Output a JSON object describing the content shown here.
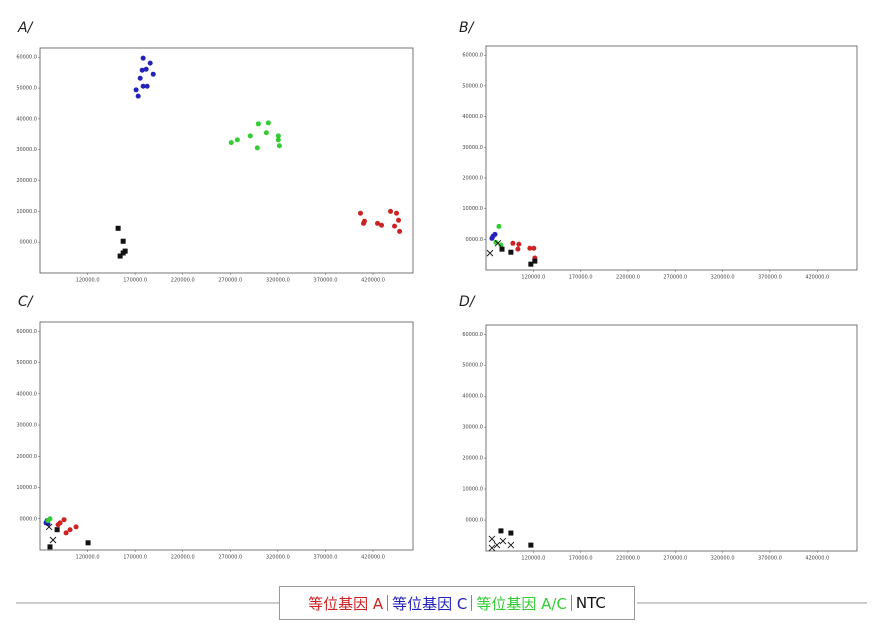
{
  "chart_data": [
    {
      "type": "scatter",
      "title": "A/",
      "xlim": [
        70000,
        462000
      ],
      "ylim": [
        -10000,
        63000
      ],
      "xticks": [
        {
          "value": 120000,
          "label": "120000.0"
        },
        {
          "value": 170000,
          "label": "170000.0"
        },
        {
          "value": 220000,
          "label": "220000.0"
        },
        {
          "value": 270000,
          "label": "270000.0"
        },
        {
          "value": 320000,
          "label": "320000.0"
        },
        {
          "value": 370000,
          "label": "370000.0"
        },
        {
          "value": 420000,
          "label": "420000.0"
        }
      ],
      "yticks": [
        {
          "value": 0,
          "label": "0000.0"
        },
        {
          "value": 10000,
          "label": "10000.0"
        },
        {
          "value": 20000,
          "label": "20000.0"
        },
        {
          "value": 30000,
          "label": "30000.0"
        },
        {
          "value": 40000,
          "label": "40000.0"
        },
        {
          "value": 50000,
          "label": "50000.0"
        },
        {
          "value": 60000,
          "label": "60000.0"
        }
      ],
      "series": [
        {
          "name": "等位基因 A",
          "color": "#cc2222",
          "x": [
            406800,
            411000,
            424700,
            428900,
            438400,
            444700,
            446800,
            442600,
            447900,
            410000
          ],
          "values": [
            9400,
            6800,
            6100,
            5500,
            10000,
            9400,
            7100,
            5200,
            3500,
            6100
          ]
        },
        {
          "name": "等位基因 C",
          "color": "#2222bb",
          "x": [
            178400,
            185800,
            177400,
            189000,
            181600,
            175300,
            178400,
            182600,
            171000,
            173200
          ],
          "values": [
            59700,
            58100,
            55800,
            54500,
            56100,
            53200,
            50600,
            50600,
            49400,
            47400
          ]
        },
        {
          "name": "等位基因 A/C",
          "color": "#33cc33",
          "x": [
            271000,
            277400,
            291000,
            299500,
            310000,
            307900,
            320500,
            320500,
            321600,
            298400
          ],
          "values": [
            32300,
            33200,
            34500,
            38400,
            38700,
            35500,
            34500,
            33200,
            31300,
            30600
          ]
        },
        {
          "name": "NTC",
          "color": "#111111",
          "x": [
            152100,
            157400,
            159500,
            157400,
            154200
          ],
          "values": [
            4500,
            300,
            -2900,
            -3500,
            -4500
          ],
          "markers": [
            "square",
            "square",
            "square",
            "square",
            "square"
          ]
        }
      ]
    },
    {
      "type": "scatter",
      "title": "B/",
      "xlim": [
        70000,
        462000
      ],
      "ylim": [
        -10000,
        63000
      ],
      "xticks": [
        {
          "value": 120000,
          "label": "120000.0"
        },
        {
          "value": 170000,
          "label": "170000.0"
        },
        {
          "value": 220000,
          "label": "220000.0"
        },
        {
          "value": 270000,
          "label": "270000.0"
        },
        {
          "value": 320000,
          "label": "320000.0"
        },
        {
          "value": 370000,
          "label": "370000.0"
        },
        {
          "value": 420000,
          "label": "420000.0"
        }
      ],
      "yticks": [
        {
          "value": 0,
          "label": "0000.0"
        },
        {
          "value": 10000,
          "label": "10000.0"
        },
        {
          "value": 20000,
          "label": "20000.0"
        },
        {
          "value": 30000,
          "label": "30000.0"
        },
        {
          "value": 40000,
          "label": "40000.0"
        },
        {
          "value": 50000,
          "label": "50000.0"
        },
        {
          "value": 60000,
          "label": "60000.0"
        }
      ],
      "series": [
        {
          "color": "#cc2222",
          "x": [
            98400,
            104700,
            116300,
            120500,
            121600,
            103700
          ],
          "values": [
            -1300,
            -1600,
            -2900,
            -2900,
            -6100,
            -3200
          ]
        },
        {
          "color": "#2222bb",
          "x": [
            77400,
            79500,
            76300
          ],
          "values": [
            1000,
            1600,
            300
          ]
        },
        {
          "color": "#33cc33",
          "x": [
            83700,
            80500,
            85800
          ],
          "values": [
            4200,
            -1000,
            -1900
          ]
        },
        {
          "color": "#111111",
          "x": [
            86900,
            96300,
            117400,
            121600,
            74200,
            82600
          ],
          "values": [
            -3200,
            -4200,
            -8100,
            -7100,
            -4500,
            -1300
          ],
          "markers": [
            "square",
            "square",
            "square",
            "square",
            "x",
            "x"
          ]
        }
      ]
    },
    {
      "type": "scatter",
      "title": "C/",
      "xlim": [
        70000,
        462000
      ],
      "ylim": [
        -10000,
        63000
      ],
      "xticks": [
        {
          "value": 120000,
          "label": "120000.0"
        },
        {
          "value": 170000,
          "label": "170000.0"
        },
        {
          "value": 220000,
          "label": "220000.0"
        },
        {
          "value": 270000,
          "label": "270000.0"
        },
        {
          "value": 320000,
          "label": "320000.0"
        },
        {
          "value": 370000,
          "label": "370000.0"
        },
        {
          "value": 420000,
          "label": "420000.0"
        }
      ],
      "yticks": [
        {
          "value": 0,
          "label": "0000.0"
        },
        {
          "value": 10000,
          "label": "10000.0"
        },
        {
          "value": 20000,
          "label": "20000.0"
        },
        {
          "value": 30000,
          "label": "30000.0"
        },
        {
          "value": 40000,
          "label": "40000.0"
        },
        {
          "value": 50000,
          "label": "50000.0"
        },
        {
          "value": 60000,
          "label": "60000.0"
        }
      ],
      "series": [
        {
          "color": "#cc2222",
          "x": [
            91100,
            95300,
            101600,
            107900,
            89000,
            97400
          ],
          "values": [
            -1300,
            -300,
            -3500,
            -2600,
            -1900,
            -4500
          ]
        },
        {
          "color": "#2222bb",
          "x": [
            76300,
            77400,
            78400
          ],
          "values": [
            -1300,
            -600,
            -1600
          ]
        },
        {
          "color": "#33cc33",
          "x": [
            80500,
            78400
          ],
          "values": [
            0,
            -600
          ]
        },
        {
          "color": "#111111",
          "x": [
            88000,
            120500,
            80500,
            83700,
            79500
          ],
          "values": [
            -3500,
            -7700,
            -9000,
            -6800,
            -2600
          ],
          "markers": [
            "square",
            "square",
            "square",
            "x",
            "x"
          ]
        }
      ]
    },
    {
      "type": "scatter",
      "title": "D/",
      "xlim": [
        70000,
        462000
      ],
      "ylim": [
        -10000,
        63000
      ],
      "xticks": [
        {
          "value": 120000,
          "label": "120000.0"
        },
        {
          "value": 170000,
          "label": "170000.0"
        },
        {
          "value": 220000,
          "label": "220000.0"
        },
        {
          "value": 270000,
          "label": "270000.0"
        },
        {
          "value": 320000,
          "label": "320000.0"
        },
        {
          "value": 370000,
          "label": "370000.0"
        },
        {
          "value": 420000,
          "label": "420000.0"
        }
      ],
      "yticks": [
        {
          "value": 0,
          "label": "0000.0"
        },
        {
          "value": 10000,
          "label": "10000.0"
        },
        {
          "value": 20000,
          "label": "20000.0"
        },
        {
          "value": 30000,
          "label": "30000.0"
        },
        {
          "value": 40000,
          "label": "40000.0"
        },
        {
          "value": 50000,
          "label": "50000.0"
        },
        {
          "value": 60000,
          "label": "60000.0"
        }
      ],
      "series": [
        {
          "color": "#111111",
          "x": [
            85800,
            96300,
            117400,
            76300,
            81600,
            87900,
            96300,
            76300
          ],
          "values": [
            -3500,
            -4200,
            -8100,
            -6100,
            -8100,
            -6800,
            -8100,
            -9000
          ],
          "markers": [
            "square",
            "square",
            "square",
            "x",
            "x",
            "x",
            "x",
            "x"
          ]
        }
      ]
    }
  ]
}
